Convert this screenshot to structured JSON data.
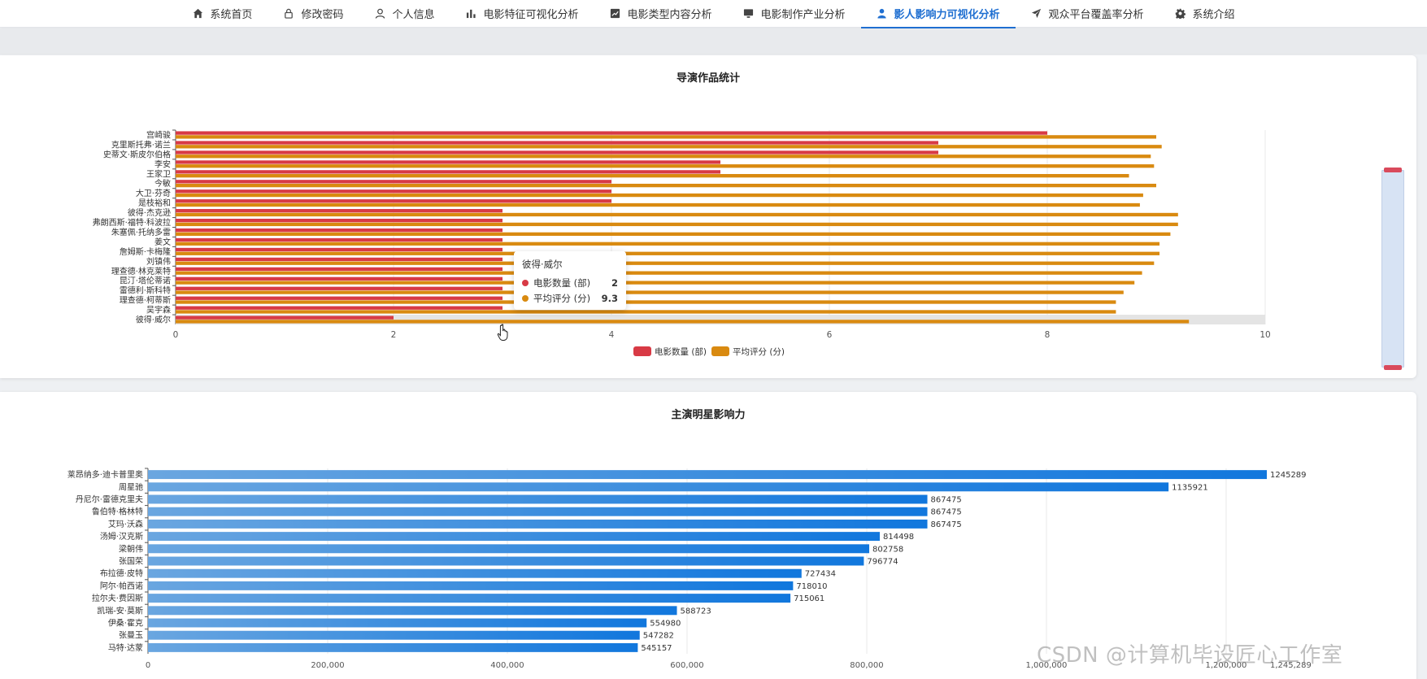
{
  "nav": {
    "items": [
      {
        "label": "系统首页",
        "icon": "home-icon",
        "active": false
      },
      {
        "label": "修改密码",
        "icon": "lock-icon",
        "active": false
      },
      {
        "label": "个人信息",
        "icon": "user-icon",
        "active": false
      },
      {
        "label": "电影特征可视化分析",
        "icon": "bar-chart-icon",
        "active": false
      },
      {
        "label": "电影类型内容分析",
        "icon": "line-chart-icon",
        "active": false
      },
      {
        "label": "电影制作产业分析",
        "icon": "monitor-icon",
        "active": false
      },
      {
        "label": "影人影响力可视化分析",
        "icon": "person-icon",
        "active": true
      },
      {
        "label": "观众平台覆盖率分析",
        "icon": "send-icon",
        "active": false
      },
      {
        "label": "系统介绍",
        "icon": "gear-icon",
        "active": false
      }
    ],
    "active_color": "#1f6fd1"
  },
  "panel1": {
    "title": "导演作品统计",
    "legend": [
      "电影数量 (部)",
      "平均评分 (分)"
    ],
    "tooltip": {
      "title": "彼得·威尔",
      "rows": [
        {
          "name": "电影数量 (部)",
          "value": "2",
          "color": "#d83a45"
        },
        {
          "name": "平均评分 (分)",
          "value": "9.3",
          "color": "#d98a10"
        }
      ]
    }
  },
  "panel2": {
    "title": "主演明星影响力"
  },
  "watermark": "CSDN @计算机毕设匠心工作室",
  "chart_data": [
    {
      "type": "bar",
      "orientation": "horizontal",
      "title": "导演作品统计",
      "categories": [
        "宫崎骏",
        "克里斯托弗·诺兰",
        "史蒂文·斯皮尔伯格",
        "李安",
        "王家卫",
        "今敏",
        "大卫·芬奇",
        "是枝裕和",
        "彼得·杰克逊",
        "弗朗西斯·福特·科波拉",
        "朱塞佩·托纳多雷",
        "姜文",
        "詹姆斯·卡梅隆",
        "刘镇伟",
        "理查德·林克莱特",
        "昆汀·塔伦蒂诺",
        "雷德利·斯科特",
        "理查德·柯蒂斯",
        "吴宇森",
        "彼得·威尔"
      ],
      "series": [
        {
          "name": "电影数量 (部)",
          "color": "#d83a45",
          "values": [
            8,
            7,
            7,
            5,
            5,
            4,
            4,
            4,
            3,
            3,
            3,
            3,
            3,
            3,
            3,
            3,
            3,
            3,
            3,
            2
          ]
        },
        {
          "name": "平均评分 (分)",
          "color": "#d98a10",
          "values": [
            9.0,
            9.05,
            8.95,
            8.98,
            8.75,
            9.0,
            8.88,
            8.85,
            9.2,
            9.2,
            9.13,
            9.03,
            9.03,
            8.98,
            8.87,
            8.8,
            8.7,
            8.63,
            8.63,
            9.3
          ]
        }
      ],
      "xlim": [
        0,
        10
      ],
      "xticks": [
        0,
        2,
        4,
        6,
        8,
        10
      ],
      "legend_position": "bottom-center",
      "grid": true,
      "highlighted_category": "彼得·威尔"
    },
    {
      "type": "bar",
      "orientation": "horizontal",
      "title": "主演明星影响力",
      "categories": [
        "莱昂纳多·迪卡普里奥",
        "周星驰",
        "丹尼尔·雷德克里夫",
        "鲁伯特·格林特",
        "艾玛·沃森",
        "汤姆·汉克斯",
        "梁朝伟",
        "张国荣",
        "布拉德·皮特",
        "阿尔·帕西诺",
        "拉尔夫·费因斯",
        "凯瑞-安·莫斯",
        "伊桑·霍克",
        "张曼玉",
        "马特·达蒙"
      ],
      "values": [
        1245289,
        1135921,
        867475,
        867475,
        867475,
        814498,
        802758,
        796774,
        727434,
        718010,
        715061,
        588723,
        554980,
        547282,
        545157
      ],
      "value_labels": [
        "1245289",
        "1135921",
        "867475",
        "867475",
        "867475",
        "814498",
        "802758",
        "796774",
        "727434",
        "718010",
        "715061",
        "588723",
        "554980",
        "547282",
        "545157"
      ],
      "color_start": "#6aa6e0",
      "color_end": "#1177dd",
      "xlim": [
        0,
        1245289
      ],
      "xticks": [
        0,
        200000,
        400000,
        600000,
        800000,
        1000000,
        1200000,
        1245289
      ],
      "xtick_labels": [
        "0",
        "200,000",
        "400,000",
        "600,000",
        "800,000",
        "1,000,000",
        "1,200,000",
        "1,245,289"
      ],
      "grid": true
    }
  ]
}
